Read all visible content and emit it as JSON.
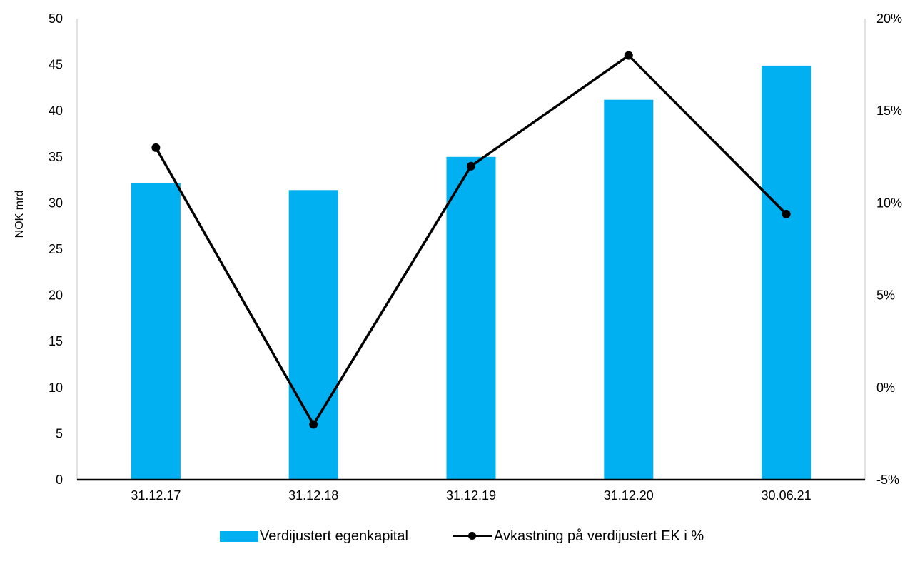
{
  "chart_data": {
    "type": "bar",
    "categories": [
      "31.12.17",
      "31.12.18",
      "31.12.19",
      "31.12.20",
      "30.06.21"
    ],
    "series": [
      {
        "name": "Verdijustert egenkapital",
        "type": "bar",
        "axis": "left",
        "color": "#00B0F0",
        "values": [
          32.2,
          31.4,
          35.0,
          41.2,
          44.9
        ]
      },
      {
        "name": "Avkastning på verdijustert EK i %",
        "type": "line",
        "axis": "right",
        "color": "#000000",
        "values": [
          13.0,
          -2.0,
          12.0,
          18.0,
          9.4
        ]
      }
    ],
    "ylabel": "NOK mrd",
    "ylim": [
      0,
      50
    ],
    "yticks": [
      0,
      5,
      10,
      15,
      20,
      25,
      30,
      35,
      40,
      45,
      50
    ],
    "y2lim": [
      -5,
      20
    ],
    "y2ticks": [
      "-5%",
      "0%",
      "5%",
      "10%",
      "15%",
      "20%"
    ],
    "grid": false,
    "legend": "bottom-center"
  },
  "legend": {
    "bar_label": "Verdijustert egenkapital",
    "line_label": "Avkastning på verdijustert EK i %"
  }
}
